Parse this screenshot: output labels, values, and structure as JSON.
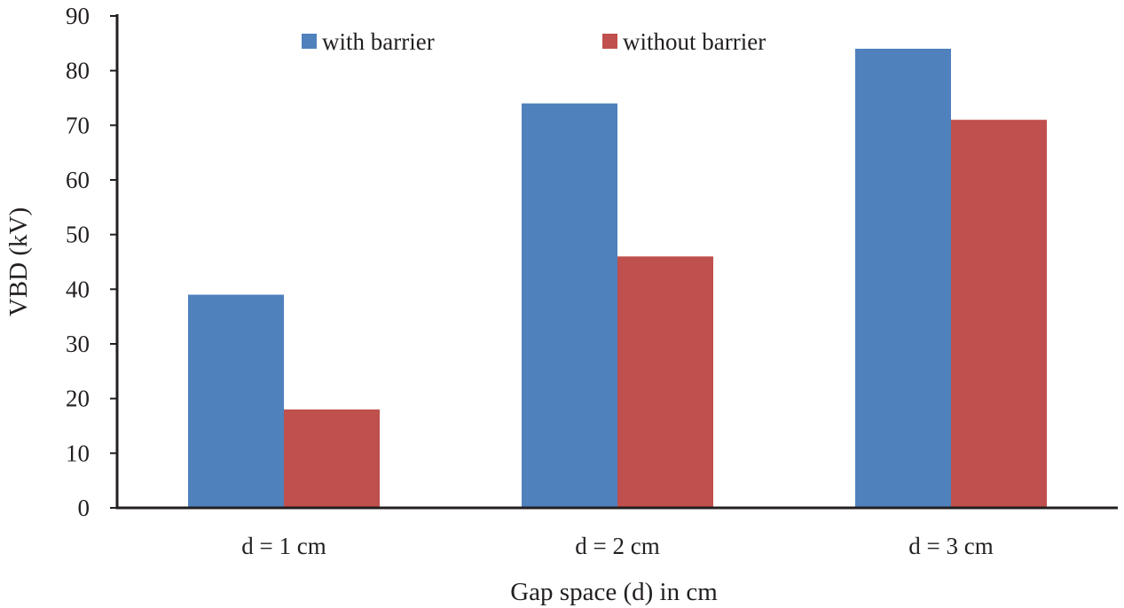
{
  "chart_data": {
    "type": "bar",
    "categories": [
      "d = 1 cm",
      "d = 2 cm",
      "d = 3 cm"
    ],
    "series": [
      {
        "name": "with barrier",
        "values": [
          39,
          74,
          84
        ],
        "color": "#4f81bd"
      },
      {
        "name": "without barrier",
        "values": [
          18,
          46,
          71
        ],
        "color": "#c0504d"
      }
    ],
    "xlabel": "Gap space (d) in cm",
    "ylabel": "VBD (kV)",
    "ylim": [
      0,
      90
    ],
    "yticks": [
      0,
      10,
      20,
      30,
      40,
      50,
      60,
      70,
      80,
      90
    ],
    "grid": false,
    "legend_position": "top-center",
    "axis_color": "#231f20"
  }
}
